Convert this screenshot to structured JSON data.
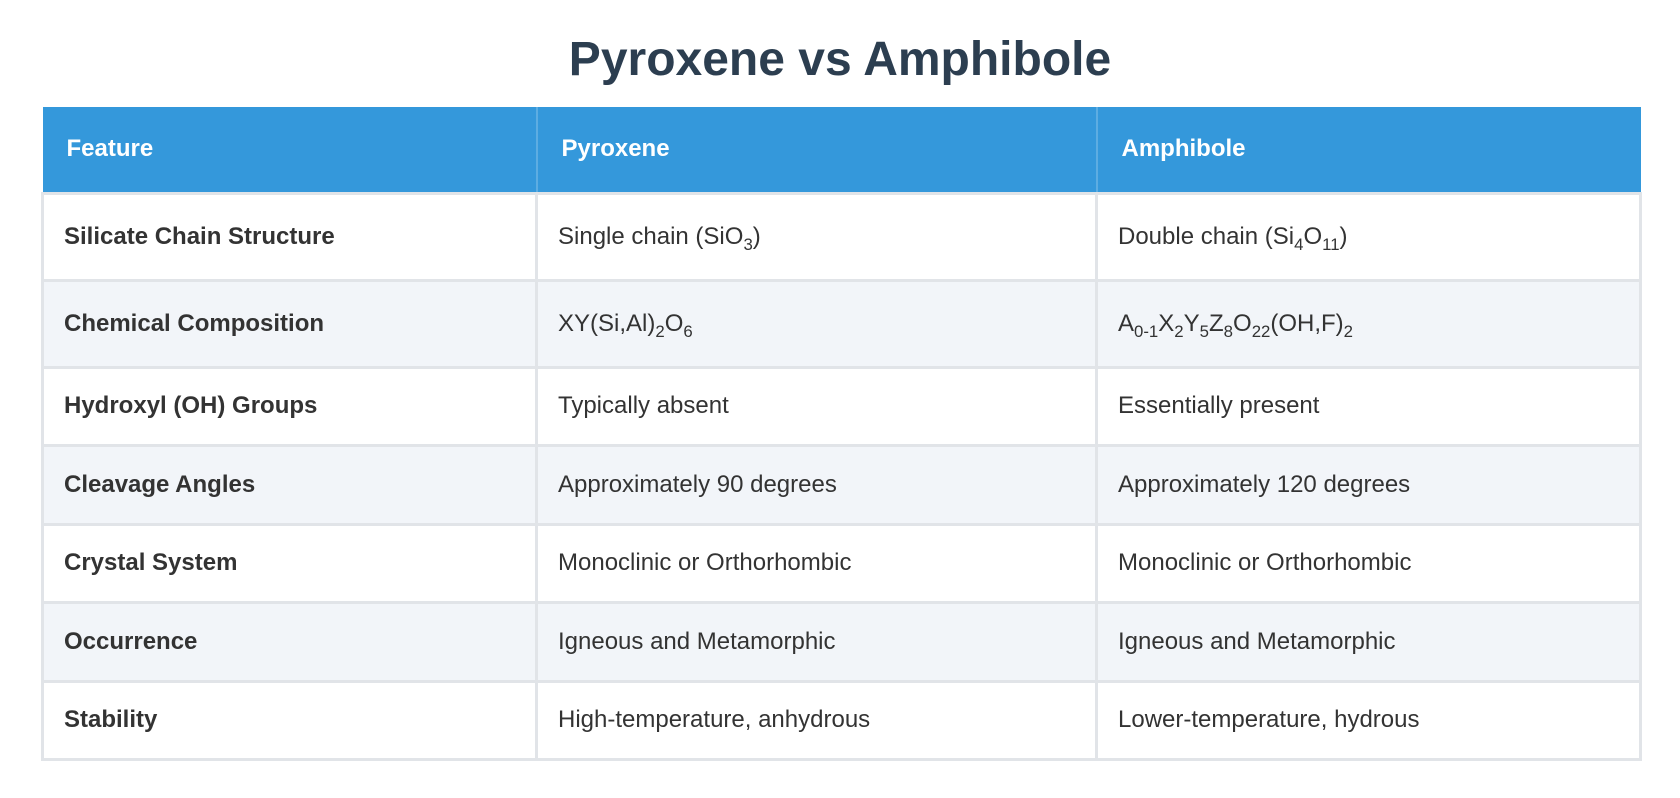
{
  "title": "Pyroxene vs Amphibole",
  "colors": {
    "header_bg": "#3498db",
    "title": "#2c3e50",
    "stripe": "#f2f5f9"
  },
  "table": {
    "headers": [
      "Feature",
      "Pyroxene",
      "Amphibole"
    ],
    "rows": [
      {
        "feature": "Silicate Chain Structure",
        "pyroxene": {
          "t0": "Single chain (SiO",
          "s0": "3",
          "t1": ")"
        },
        "amphibole": {
          "t0": "Double chain (Si",
          "s0": "4",
          "t1": "O",
          "s1": "11",
          "t2": ")"
        }
      },
      {
        "feature": "Chemical Composition",
        "pyroxene": {
          "t0": "XY(Si,Al)",
          "s0": "2",
          "t1": "O",
          "s1": "6"
        },
        "amphibole": {
          "t0": "A",
          "s0": "0-1",
          "t1": "X",
          "s1": "2",
          "t2": "Y",
          "s2": "5",
          "t3": "Z",
          "s3": "8",
          "t4": "O",
          "s4": "22",
          "t5": "(OH,F)",
          "s5": "2"
        }
      },
      {
        "feature": "Hydroxyl (OH) Groups",
        "pyroxene": "Typically absent",
        "amphibole": "Essentially present"
      },
      {
        "feature": "Cleavage Angles",
        "pyroxene": "Approximately 90 degrees",
        "amphibole": "Approximately 120 degrees"
      },
      {
        "feature": "Crystal System",
        "pyroxene": "Monoclinic or Orthorhombic",
        "amphibole": "Monoclinic or Orthorhombic"
      },
      {
        "feature": "Occurrence",
        "pyroxene": "Igneous and Metamorphic",
        "amphibole": "Igneous and Metamorphic"
      },
      {
        "feature": "Stability",
        "pyroxene": "High-temperature, anhydrous",
        "amphibole": "Lower-temperature, hydrous"
      }
    ]
  }
}
